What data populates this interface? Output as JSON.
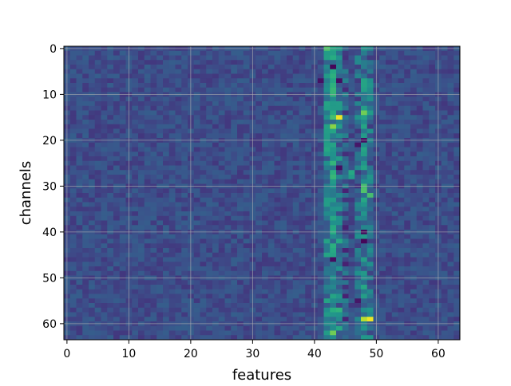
{
  "chart_data": {
    "type": "heatmap",
    "title": "",
    "xlabel": "features",
    "ylabel": "channels",
    "rows": 64,
    "cols": 64,
    "x_ticks": [
      0,
      10,
      20,
      30,
      40,
      50,
      60
    ],
    "y_ticks": [
      0,
      10,
      20,
      30,
      40,
      50,
      60
    ],
    "xlim": [
      -0.5,
      63.5
    ],
    "ylim": [
      63.5,
      -0.5
    ],
    "grid": true,
    "colormap": "viridis",
    "colors": {
      "low": "#440154",
      "mid_low": "#3b528b",
      "mid": "#21918c",
      "mid_high": "#5ec962",
      "high": "#fde725",
      "grid": "#b0b0b0"
    },
    "background_level": 0.24,
    "features_column_profile": [
      {
        "feature": 42,
        "typical_level": 0.42
      },
      {
        "feature": 43,
        "typical_level": 0.5
      },
      {
        "feature": 44,
        "typical_level": 0.38
      },
      {
        "feature": 45,
        "typical_level": 0.28
      },
      {
        "feature": 47,
        "typical_level": 0.34
      },
      {
        "feature": 48,
        "typical_level": 0.42
      },
      {
        "feature": 49,
        "typical_level": 0.36
      }
    ],
    "hotspots": [
      {
        "channel": 0,
        "feature": 42,
        "level": 0.72
      },
      {
        "channel": 0,
        "feature": 43,
        "level": 0.6
      },
      {
        "channel": 0,
        "feature": 44,
        "level": 0.55
      },
      {
        "channel": 1,
        "feature": 43,
        "level": 0.56
      },
      {
        "channel": 0,
        "feature": 48,
        "level": 0.5
      },
      {
        "channel": 15,
        "feature": 44,
        "level": 0.98
      },
      {
        "channel": 15,
        "feature": 43,
        "level": 0.7
      },
      {
        "channel": 17,
        "feature": 43,
        "level": 0.82
      },
      {
        "channel": 14,
        "feature": 48,
        "level": 0.78
      },
      {
        "channel": 14,
        "feature": 49,
        "level": 0.55
      },
      {
        "channel": 22,
        "feature": 42,
        "level": 0.6
      },
      {
        "channel": 23,
        "feature": 42,
        "level": 0.55
      },
      {
        "channel": 27,
        "feature": 46,
        "level": 0.6
      },
      {
        "channel": 28,
        "feature": 46,
        "level": 0.55
      },
      {
        "channel": 30,
        "feature": 48,
        "level": 0.7
      },
      {
        "channel": 31,
        "feature": 48,
        "level": 0.72
      },
      {
        "channel": 32,
        "feature": 49,
        "level": 0.7
      },
      {
        "channel": 33,
        "feature": 48,
        "level": 0.6
      },
      {
        "channel": 37,
        "feature": 43,
        "level": 0.6
      },
      {
        "channel": 42,
        "feature": 42,
        "level": 0.58
      },
      {
        "channel": 42,
        "feature": 44,
        "level": 0.6
      },
      {
        "channel": 52,
        "feature": 48,
        "level": 0.6
      },
      {
        "channel": 57,
        "feature": 44,
        "level": 0.65
      },
      {
        "channel": 59,
        "feature": 48,
        "level": 0.9
      },
      {
        "channel": 59,
        "feature": 49,
        "level": 0.98
      },
      {
        "channel": 61,
        "feature": 44,
        "level": 0.6
      },
      {
        "channel": 62,
        "feature": 43,
        "level": 0.78
      },
      {
        "channel": 62,
        "feature": 42,
        "level": 0.55
      }
    ],
    "coldspots": [
      {
        "channel": 4,
        "feature": 43,
        "level": 0.02
      },
      {
        "channel": 7,
        "feature": 44,
        "level": 0.05
      },
      {
        "channel": 7,
        "feature": 41,
        "level": 0.06
      },
      {
        "channel": 20,
        "feature": 48,
        "level": 0.05
      },
      {
        "channel": 21,
        "feature": 47,
        "level": 0.08
      },
      {
        "channel": 26,
        "feature": 44,
        "level": 0.05
      },
      {
        "channel": 40,
        "feature": 48,
        "level": 0.04
      },
      {
        "channel": 42,
        "feature": 48,
        "level": 0.02
      },
      {
        "channel": 46,
        "feature": 43,
        "level": 0.05
      },
      {
        "channel": 55,
        "feature": 47,
        "level": 0.08
      }
    ]
  }
}
